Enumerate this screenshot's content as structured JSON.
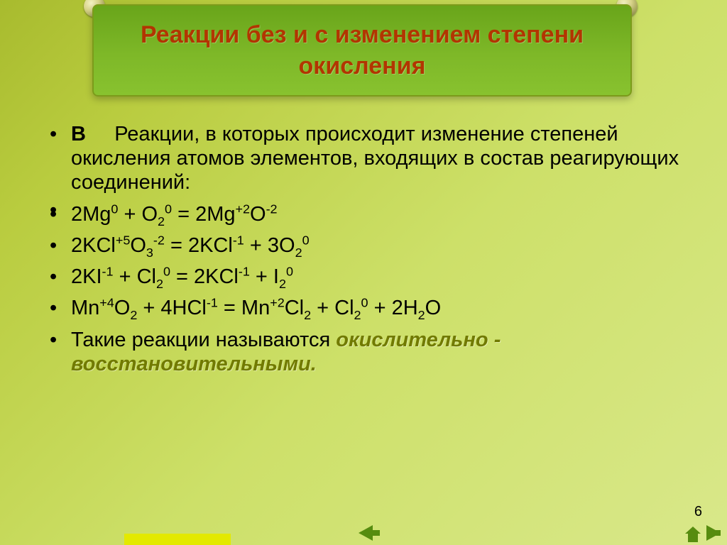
{
  "slide": {
    "title": "Реакции без и с изменением степени окисления",
    "page_number": "6",
    "colors": {
      "background_gradient": [
        "#a8bb2e",
        "#d9e88a"
      ],
      "title_bg": [
        "#69a51a",
        "#88c22f"
      ],
      "title_text": "#b23500",
      "body_text": "#000000",
      "redox_text": "#717a00",
      "nav_icon": "#568c0f",
      "accent_tab": "#e3e900"
    },
    "typography": {
      "title_fontsize_pt": 26,
      "body_fontsize_pt": 22,
      "font_family": "Arial"
    }
  },
  "bullets": {
    "b1_lead": "В",
    "b1_rest": "     Реакции, в которых происходит изменение степеней окисления атомов элементов, входящих в состав реагирующих соединений:",
    "b2": "",
    "eq1": {
      "lhs_a": "2Mg",
      "lhs_a_sup": "0",
      "plus1": " + O",
      "o_sub": "2",
      "o_sup": "0",
      "eq": " = 2Mg",
      "mg_sup": "+2",
      "o2": "O",
      "o2_sup": "-2"
    },
    "eq2": {
      "a": "2KCl",
      "a_sup": "+5",
      "b": "O",
      "b_sub": "3",
      "b_sup": "-2",
      "eq": "   =  2KCl",
      "c_sup": "-1",
      "d": " + 3O",
      "d_sub": "2",
      "d_sup": "0"
    },
    "eq3": {
      "a": "2KI",
      "a_sup": "-1",
      "b": " + Cl",
      "b_sub": "2",
      "b_sup": "0",
      "eq": " = 2KCl",
      "c_sup": "-1",
      "d": " + I",
      "d_sub": "2",
      "d_sup": "0"
    },
    "eq4": {
      "a": "Mn",
      "a_sup": "+4",
      "b": "O",
      "b_sub": "2",
      "c": " + 4HCl",
      "c_sup": "-1",
      "eq": " = Mn",
      "d_sup": "+2",
      "e": "Cl",
      "e_sub": "2",
      "f": " + Cl",
      "f_sub": "2",
      "f_sup": "0",
      "g": " + 2H",
      "g_sub": "2",
      "h": "O"
    },
    "b_last_a": "Такие реакции называются ",
    "b_last_redox": "окислительно - восстановительными."
  },
  "nav": {
    "prev": "previous-slide",
    "home": "home",
    "next": "next-slide"
  }
}
